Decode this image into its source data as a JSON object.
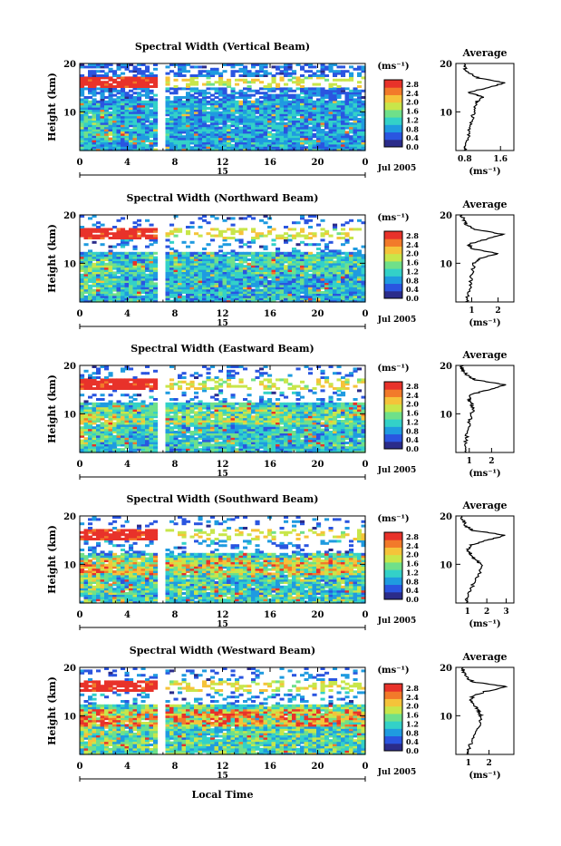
{
  "figure": {
    "bottom_label": "Local Time",
    "date_label": "Jul 2005",
    "day_label": "15",
    "time_ticks": [
      "0",
      "4",
      "8",
      "12",
      "16",
      "20",
      "0"
    ],
    "height_ticks": [
      "20",
      "10"
    ],
    "ylabel": "Height (km)",
    "colorbar_unit": "(ms⁻¹)",
    "colorbar_ticks": [
      "2.8",
      "2.4",
      "2.0",
      "1.6",
      "1.2",
      "0.8",
      "0.4",
      "0.0"
    ],
    "average_title": "Average",
    "average_xlabel": "(ms⁻¹)"
  },
  "colors": {
    "colormap": [
      "#2b2c8a",
      "#2a55e0",
      "#1f9be0",
      "#33d1c8",
      "#6fe08a",
      "#c8e64a",
      "#f5c33a",
      "#f27a2a",
      "#e8322a"
    ]
  },
  "chart_data": [
    {
      "type": "heatmap",
      "title": "Spectral Width (Vertical Beam)",
      "ylabel": "Height (km)",
      "xlabel": "Local Time",
      "xlim": [
        0,
        24
      ],
      "ylim": [
        2,
        20
      ],
      "clim": [
        0.0,
        3.0
      ],
      "avg_ticks": [
        "0.8",
        "1.6"
      ],
      "avg_xlim": [
        0.6,
        1.9
      ],
      "average_profile": {
        "height": [
          2,
          4,
          6,
          8,
          10,
          12,
          13,
          14,
          15,
          16,
          17,
          18,
          19,
          20
        ],
        "width": [
          0.8,
          0.85,
          0.9,
          0.95,
          1.0,
          1.05,
          1.2,
          0.9,
          1.3,
          1.7,
          1.1,
          0.9,
          0.8,
          0.8
        ]
      }
    },
    {
      "type": "heatmap",
      "title": "Spectral Width (Northward Beam)",
      "ylabel": "Height (km)",
      "xlabel": "Local Time",
      "xlim": [
        0,
        24
      ],
      "ylim": [
        2,
        20
      ],
      "clim": [
        0.0,
        3.0
      ],
      "avg_ticks": [
        "1",
        "2"
      ],
      "avg_xlim": [
        0.4,
        2.6
      ],
      "average_profile": {
        "height": [
          2,
          4,
          6,
          8,
          10,
          11,
          12,
          13,
          14,
          15,
          16,
          17,
          18,
          19,
          20
        ],
        "width": [
          0.8,
          0.9,
          0.95,
          1.0,
          1.1,
          1.3,
          2.0,
          1.0,
          0.9,
          1.6,
          2.2,
          1.1,
          0.8,
          0.7,
          0.6
        ]
      }
    },
    {
      "type": "heatmap",
      "title": "Spectral Width (Eastward Beam)",
      "ylabel": "Height (km)",
      "xlabel": "Local Time",
      "xlim": [
        0,
        24
      ],
      "ylim": [
        2,
        20
      ],
      "clim": [
        0.0,
        3.0
      ],
      "avg_ticks": [
        "1",
        "2"
      ],
      "avg_xlim": [
        0.4,
        3.0
      ],
      "average_profile": {
        "height": [
          2,
          4,
          6,
          8,
          10,
          11,
          12,
          13,
          14,
          15,
          16,
          17,
          18,
          19,
          20
        ],
        "width": [
          0.8,
          0.85,
          0.9,
          1.0,
          1.1,
          1.2,
          1.1,
          1.0,
          1.1,
          1.9,
          2.6,
          1.3,
          0.9,
          0.7,
          0.6
        ]
      }
    },
    {
      "type": "heatmap",
      "title": "Spectral Width (Southward Beam)",
      "ylabel": "Height (km)",
      "xlabel": "Local Time",
      "xlim": [
        0,
        24
      ],
      "ylim": [
        2,
        20
      ],
      "clim": [
        0.0,
        3.0
      ],
      "avg_ticks": [
        "1",
        "2",
        "3"
      ],
      "avg_xlim": [
        0.4,
        3.4
      ],
      "average_profile": {
        "height": [
          2,
          4,
          6,
          8,
          10,
          11,
          12,
          13,
          14,
          15,
          16,
          17,
          18,
          19,
          20
        ],
        "width": [
          0.9,
          1.1,
          1.3,
          1.6,
          1.7,
          1.4,
          1.2,
          1.0,
          1.2,
          2.0,
          3.0,
          1.3,
          0.9,
          0.8,
          0.7
        ]
      }
    },
    {
      "type": "heatmap",
      "title": "Spectral Width (Westward Beam)",
      "ylabel": "Height (km)",
      "xlabel": "Local Time",
      "xlim": [
        0,
        24
      ],
      "ylim": [
        2,
        20
      ],
      "clim": [
        0.0,
        3.0
      ],
      "avg_ticks": [
        "1",
        "2"
      ],
      "avg_xlim": [
        0.4,
        3.2
      ],
      "average_profile": {
        "height": [
          2,
          4,
          6,
          8,
          10,
          11,
          12,
          13,
          14,
          15,
          16,
          17,
          18,
          19,
          20
        ],
        "width": [
          0.9,
          1.1,
          1.3,
          1.5,
          1.6,
          1.5,
          1.3,
          1.1,
          1.2,
          1.8,
          2.9,
          1.2,
          0.9,
          0.8,
          0.7
        ]
      }
    }
  ]
}
